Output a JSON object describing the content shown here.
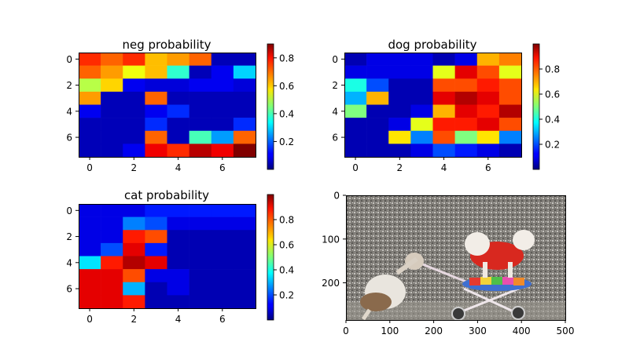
{
  "chart_data": [
    {
      "type": "heatmap",
      "title": "neg probability",
      "colormap": "jet",
      "xticks": [
        0,
        2,
        4,
        6
      ],
      "yticks": [
        0,
        2,
        4,
        6
      ],
      "colorbar": {
        "min": 0.0,
        "max": 0.9,
        "ticks": [
          0.2,
          0.4,
          0.6,
          0.8
        ]
      },
      "values": [
        [
          0.75,
          0.7,
          0.75,
          0.62,
          0.65,
          0.7,
          0.05,
          0.05
        ],
        [
          0.7,
          0.65,
          0.55,
          0.62,
          0.38,
          0.05,
          0.1,
          0.3
        ],
        [
          0.5,
          0.6,
          0.1,
          0.08,
          0.08,
          0.1,
          0.1,
          0.08
        ],
        [
          0.65,
          0.05,
          0.05,
          0.7,
          0.05,
          0.05,
          0.05,
          0.05
        ],
        [
          0.1,
          0.05,
          0.05,
          0.1,
          0.15,
          0.05,
          0.05,
          0.05
        ],
        [
          0.05,
          0.05,
          0.05,
          0.15,
          0.05,
          0.05,
          0.05,
          0.15
        ],
        [
          0.05,
          0.05,
          0.05,
          0.7,
          0.05,
          0.4,
          0.25,
          0.7
        ],
        [
          0.05,
          0.05,
          0.1,
          0.8,
          0.75,
          0.85,
          0.8,
          0.9
        ]
      ]
    },
    {
      "type": "heatmap",
      "title": "dog probability",
      "colormap": "jet",
      "xticks": [
        0,
        2,
        4,
        6
      ],
      "yticks": [
        0,
        2,
        4,
        6
      ],
      "colorbar": {
        "min": 0.0,
        "max": 1.0,
        "ticks": [
          0.2,
          0.4,
          0.6,
          0.8
        ]
      },
      "values": [
        [
          0.05,
          0.1,
          0.1,
          0.1,
          0.05,
          0.1,
          0.7,
          0.75
        ],
        [
          0.1,
          0.1,
          0.1,
          0.1,
          0.6,
          0.9,
          0.8,
          0.6
        ],
        [
          0.4,
          0.2,
          0.05,
          0.05,
          0.8,
          0.8,
          0.85,
          0.8
        ],
        [
          0.3,
          0.7,
          0.05,
          0.05,
          0.9,
          0.95,
          0.9,
          0.8
        ],
        [
          0.5,
          0.05,
          0.05,
          0.1,
          0.7,
          0.9,
          0.85,
          0.95
        ],
        [
          0.05,
          0.05,
          0.1,
          0.6,
          0.85,
          0.85,
          0.9,
          0.8
        ],
        [
          0.05,
          0.05,
          0.65,
          0.25,
          0.8,
          0.5,
          0.65,
          0.25
        ],
        [
          0.05,
          0.05,
          0.05,
          0.1,
          0.2,
          0.15,
          0.1,
          0.05
        ]
      ]
    },
    {
      "type": "heatmap",
      "title": "cat probability",
      "colormap": "jet",
      "xticks": [
        0,
        2,
        4,
        6
      ],
      "yticks": [
        0,
        2,
        4,
        6
      ],
      "colorbar": {
        "min": 0.0,
        "max": 1.0,
        "ticks": [
          0.2,
          0.4,
          0.6,
          0.8
        ]
      },
      "values": [
        [
          0.1,
          0.1,
          0.1,
          0.15,
          0.15,
          0.15,
          0.15,
          0.15
        ],
        [
          0.1,
          0.1,
          0.25,
          0.2,
          0.1,
          0.1,
          0.1,
          0.1
        ],
        [
          0.1,
          0.1,
          0.85,
          0.8,
          0.05,
          0.05,
          0.05,
          0.05
        ],
        [
          0.1,
          0.2,
          0.9,
          0.15,
          0.05,
          0.05,
          0.05,
          0.05
        ],
        [
          0.35,
          0.85,
          0.95,
          0.9,
          0.05,
          0.05,
          0.05,
          0.05
        ],
        [
          0.9,
          0.9,
          0.8,
          0.1,
          0.1,
          0.05,
          0.05,
          0.05
        ],
        [
          0.9,
          0.9,
          0.3,
          0.05,
          0.1,
          0.05,
          0.05,
          0.05
        ],
        [
          0.9,
          0.9,
          0.85,
          0.05,
          0.05,
          0.05,
          0.05,
          0.05
        ]
      ]
    }
  ],
  "photo": {
    "xticks": [
      0,
      100,
      200,
      300,
      400,
      500
    ],
    "yticks": [
      0,
      100,
      200
    ],
    "xlim": [
      0,
      500
    ],
    "ylim": [
      0,
      285
    ]
  }
}
